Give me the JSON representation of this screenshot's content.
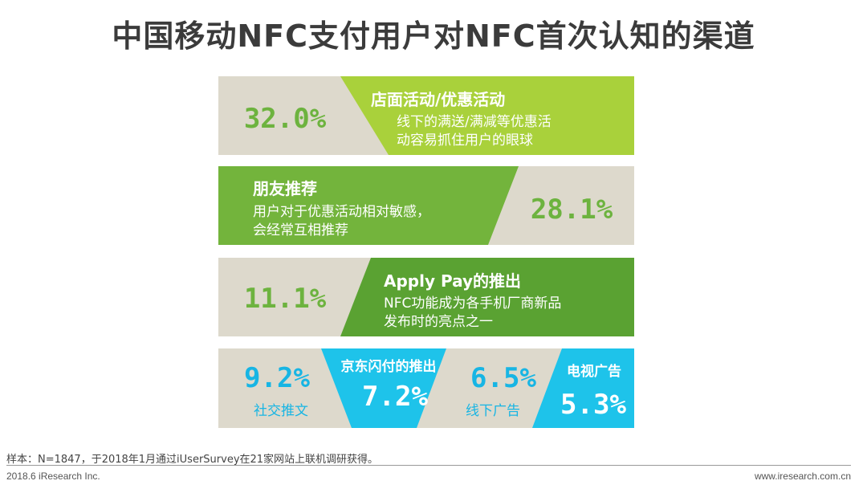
{
  "header": {
    "title": "中国移动NFC支付用户对NFC首次认知的渠道"
  },
  "colors": {
    "gray": "#ddd9cc",
    "lime": "#a9d13b",
    "green": "#73b43c",
    "dark_green": "#5aa232",
    "blue": "#1ec3ea",
    "value_green": "#6db33f",
    "value_blue": "#17b5e4",
    "white": "#ffffff"
  },
  "chart_data": {
    "type": "bar",
    "categories": [
      "店面活动/优惠活动",
      "朋友推荐",
      "Apply Pay的推出",
      "社交推文",
      "京东闪付的推出",
      "线下广告",
      "电视广告"
    ],
    "values": [
      32.0,
      28.1,
      11.1,
      9.2,
      7.2,
      6.5,
      5.3
    ],
    "unit": "%",
    "value_labels": [
      "32.0%",
      "28.1%",
      "11.1%",
      "9.2%",
      "7.2%",
      "6.5%",
      "5.3%"
    ],
    "descriptions": [
      [
        "线下的满送/满减等优惠活",
        "动容易抓住用户的眼球"
      ],
      [
        "用户对于优惠活动相对敏感，",
        "会经常互相推荐"
      ],
      [
        "NFC功能成为各手机厂商新品",
        "发布时的亮点之一"
      ],
      [],
      [],
      [],
      []
    ]
  },
  "footer": {
    "note": "样本：N=1847，于2018年1月通过iUserSurvey在21家网站上联机调研获得。",
    "copyright": "2018.6 iResearch Inc.",
    "website": "www.iresearch.com.cn"
  }
}
